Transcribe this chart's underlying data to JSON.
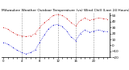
{
  "title": "Milwaukee Weather Outdoor Temperature (vs) Wind Chill (Last 24 Hours)",
  "title_fontsize": 3.2,
  "background_color": "#ffffff",
  "line1_color": "#cc0000",
  "line2_color": "#0000cc",
  "ylim": [
    -20,
    55
  ],
  "yticks": [
    -20,
    -10,
    0,
    10,
    20,
    30,
    40,
    50
  ],
  "ytick_labels": [
    "-20",
    "-10",
    "0",
    "10",
    "20",
    "30",
    "40",
    "50"
  ],
  "ytick_fontsize": 3.0,
  "xtick_fontsize": 2.8,
  "grid_color": "#999999",
  "temp_data": [
    30,
    27,
    22,
    18,
    16,
    15,
    16,
    20,
    30,
    38,
    44,
    50,
    52,
    50,
    45,
    38,
    33,
    42,
    46,
    42,
    44,
    46,
    45,
    44
  ],
  "windchill_data": [
    5,
    2,
    -3,
    -8,
    -12,
    -14,
    -12,
    -8,
    5,
    18,
    28,
    34,
    35,
    32,
    24,
    14,
    8,
    20,
    26,
    22,
    24,
    26,
    24,
    23
  ],
  "n_points": 24,
  "vgrid_positions": [
    4,
    8,
    12,
    16,
    20
  ],
  "x_labels": [
    "0",
    "",
    "",
    "",
    "4",
    "",
    "",
    "",
    "8",
    "",
    "",
    "",
    "12",
    "",
    "",
    "",
    "16",
    "",
    "",
    "",
    "20",
    "",
    "",
    "",
    "24"
  ]
}
